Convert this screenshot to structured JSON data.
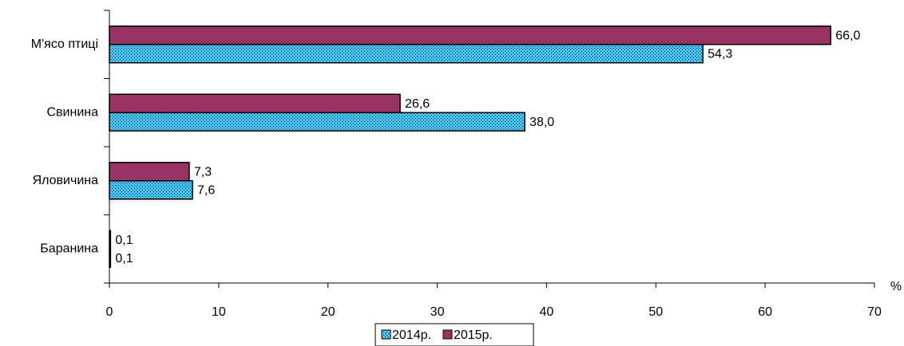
{
  "chart_data": {
    "type": "bar",
    "orientation": "horizontal",
    "categories": [
      "М'ясо птиці",
      "Свинина",
      "Яловичина",
      "Баранина"
    ],
    "series": [
      {
        "name": "2014р.",
        "color": "#33ccff",
        "pattern": "dots",
        "values": [
          54.3,
          38.0,
          7.6,
          0.1
        ],
        "value_labels": [
          "54,3",
          "38,0",
          "7,6",
          "0,1"
        ]
      },
      {
        "name": "2015р.",
        "color": "#993366",
        "values": [
          66.0,
          26.6,
          7.3,
          0.1
        ],
        "value_labels": [
          "66,0",
          "26,6",
          "7,3",
          "0,1"
        ]
      }
    ],
    "x_label": "%",
    "xlim": [
      0,
      70
    ],
    "xticks": [
      0,
      10,
      20,
      30,
      40,
      50,
      60,
      70
    ],
    "legend": "bottom"
  }
}
